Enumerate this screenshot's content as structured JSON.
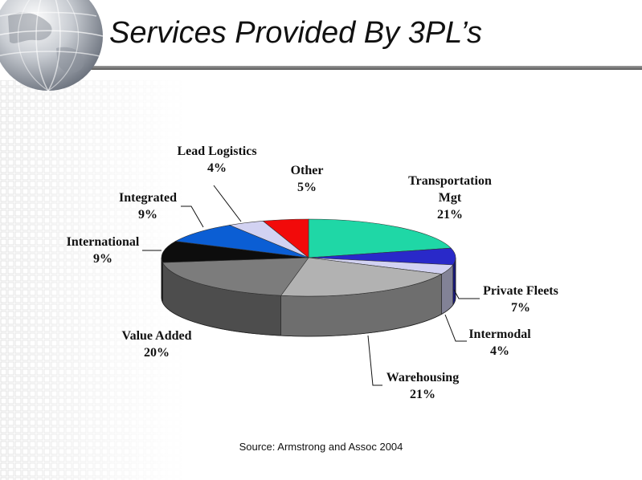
{
  "slide": {
    "title": "Services Provided By 3PL’s",
    "source": "Source: Armstrong and Assoc 2004"
  },
  "chart_data": {
    "type": "pie",
    "title": "",
    "legend": "none",
    "slices": [
      {
        "name": "Transportation Mgt",
        "lines": [
          "Transportation",
          "Mgt"
        ],
        "pct_label": "21%",
        "value": 21,
        "color": "#1fd7a6"
      },
      {
        "name": "Private Fleets",
        "lines": [
          "Private Fleets"
        ],
        "pct_label": "7%",
        "value": 7,
        "color": "#2929c9"
      },
      {
        "name": "Intermodal",
        "lines": [
          "Intermodal"
        ],
        "pct_label": "4%",
        "value": 4,
        "color": "#d2d2f2"
      },
      {
        "name": "Warehousing",
        "lines": [
          "Warehousing"
        ],
        "pct_label": "21%",
        "value": 21,
        "color": "#b2b2b2"
      },
      {
        "name": "Value Added",
        "lines": [
          "Value Added"
        ],
        "pct_label": "20%",
        "value": 20,
        "color": "#7c7c7c"
      },
      {
        "name": "International",
        "lines": [
          "International"
        ],
        "pct_label": "9%",
        "value": 9,
        "color": "#0d0d0d"
      },
      {
        "name": "Integrated",
        "lines": [
          "Integrated"
        ],
        "pct_label": "9%",
        "value": 9,
        "color": "#0b5ed4"
      },
      {
        "name": "Lead Logistics",
        "lines": [
          "Lead Logistics"
        ],
        "pct_label": "4%",
        "value": 4,
        "color": "#d2d2f2"
      },
      {
        "name": "Other",
        "lines": [
          "Other"
        ],
        "pct_label": "5%",
        "value": 5,
        "color": "#f20a0a"
      }
    ]
  }
}
